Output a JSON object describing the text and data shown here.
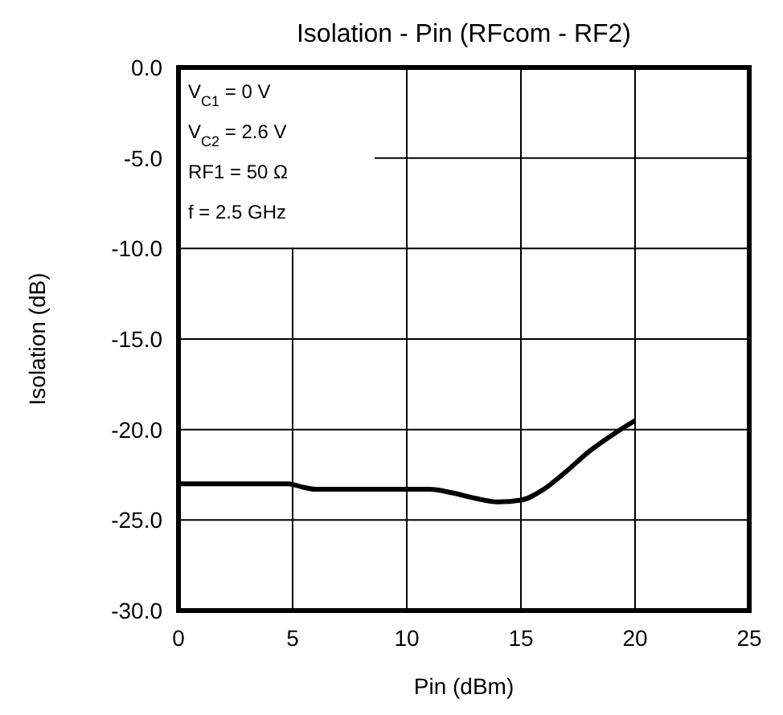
{
  "chart_data": {
    "type": "line",
    "title": "Isolation - Pin (RFcom - RF2)",
    "xlabel": "Pin (dBm)",
    "ylabel": "Isolation (dB)",
    "annotations": [
      "V$_{C1}$ = 0 V",
      "V$_{C2}$ = 2.6 V",
      "RF1 = 50 Ω",
      "f = 2.5 GHz"
    ],
    "x": [
      0,
      2,
      4,
      4.8,
      5.5,
      6,
      8,
      10,
      11,
      12,
      13,
      14,
      15,
      16,
      17,
      18,
      19,
      20
    ],
    "series": [
      {
        "color": "#000000",
        "values": [
          -23,
          -23,
          -23,
          -23,
          -23.2,
          -23.3,
          -23.3,
          -23.3,
          -23.3,
          -23.5,
          -23.8,
          -24,
          -23.9,
          -23.3,
          -22.3,
          -21.2,
          -20.3,
          -19.5
        ]
      }
    ],
    "xlim": [
      0,
      25
    ],
    "xticks": [
      0,
      5,
      10,
      15,
      20,
      25
    ],
    "ylim": [
      -30,
      0
    ],
    "yticks": [
      {
        "value": 0,
        "label": "0.0"
      },
      {
        "value": -5,
        "label": "-5.0"
      },
      {
        "value": -10,
        "label": "-10.0"
      },
      {
        "value": -15,
        "label": "-15.0"
      },
      {
        "value": -20,
        "label": "-20.0"
      },
      {
        "value": -25,
        "label": "-25.0"
      },
      {
        "value": -30,
        "label": "-30.0"
      }
    ],
    "grid": true,
    "marker": "none",
    "line_style": "solid"
  }
}
